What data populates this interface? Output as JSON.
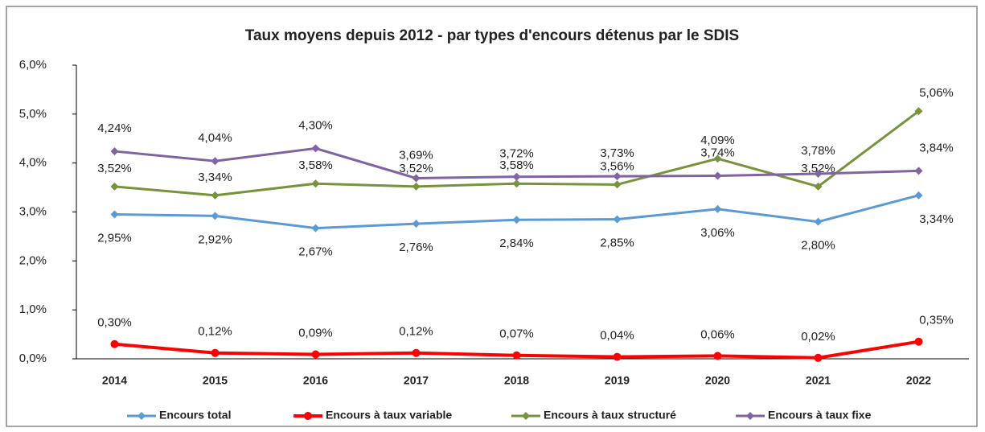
{
  "chart_data": {
    "type": "line",
    "title": "Taux moyens depuis 2012 - par types d'encours détenus par le SDIS",
    "categories": [
      "2014",
      "2015",
      "2016",
      "2017",
      "2018",
      "2019",
      "2020",
      "2021",
      "2022"
    ],
    "ylim": [
      0,
      6
    ],
    "yticks": [
      {
        "value": 0,
        "label": "0,0%"
      },
      {
        "value": 1,
        "label": "1,0%"
      },
      {
        "value": 2,
        "label": "2,0%"
      },
      {
        "value": 3,
        "label": "3,0%"
      },
      {
        "value": 4,
        "label": "4,0%"
      },
      {
        "value": 5,
        "label": "5,0%"
      },
      {
        "value": 6,
        "label": "6,0%"
      }
    ],
    "legend": "bottom",
    "series": [
      {
        "name": "Encours total",
        "color": "#5b9bd5",
        "marker": "diamond",
        "values": [
          2.95,
          2.92,
          2.67,
          2.76,
          2.84,
          2.85,
          3.06,
          2.8,
          3.34
        ],
        "value_labels": [
          "2,95%",
          "2,92%",
          "2,67%",
          "2,76%",
          "2,84%",
          "2,85%",
          "3,06%",
          "2,80%",
          "3,34%"
        ]
      },
      {
        "name": "Encours à taux variable",
        "color": "#ff0000",
        "marker": "circle",
        "values": [
          0.3,
          0.12,
          0.09,
          0.12,
          0.07,
          0.04,
          0.06,
          0.02,
          0.35
        ],
        "value_labels": [
          "0,30%",
          "0,12%",
          "0,09%",
          "0,12%",
          "0,07%",
          "0,04%",
          "0,06%",
          "0,02%",
          "0,35%"
        ]
      },
      {
        "name": "Encours à taux structuré",
        "color": "#77933c",
        "marker": "diamond",
        "values": [
          3.52,
          3.34,
          3.58,
          3.52,
          3.58,
          3.56,
          4.09,
          3.52,
          5.06
        ],
        "value_labels": [
          "3,52%",
          "3,34%",
          "3,58%",
          "3,52%",
          "3,58%",
          "3,56%",
          "4,09%",
          "3,52%",
          "5,06%"
        ]
      },
      {
        "name": "Encours à taux fixe",
        "color": "#8064a2",
        "marker": "diamond",
        "values": [
          4.24,
          4.04,
          4.3,
          3.69,
          3.72,
          3.73,
          3.74,
          3.78,
          3.84
        ],
        "value_labels": [
          "4,24%",
          "4,04%",
          "4,30%",
          "3,69%",
          "3,72%",
          "3,73%",
          "3,74%",
          "3,78%",
          "3,84%"
        ]
      }
    ]
  }
}
